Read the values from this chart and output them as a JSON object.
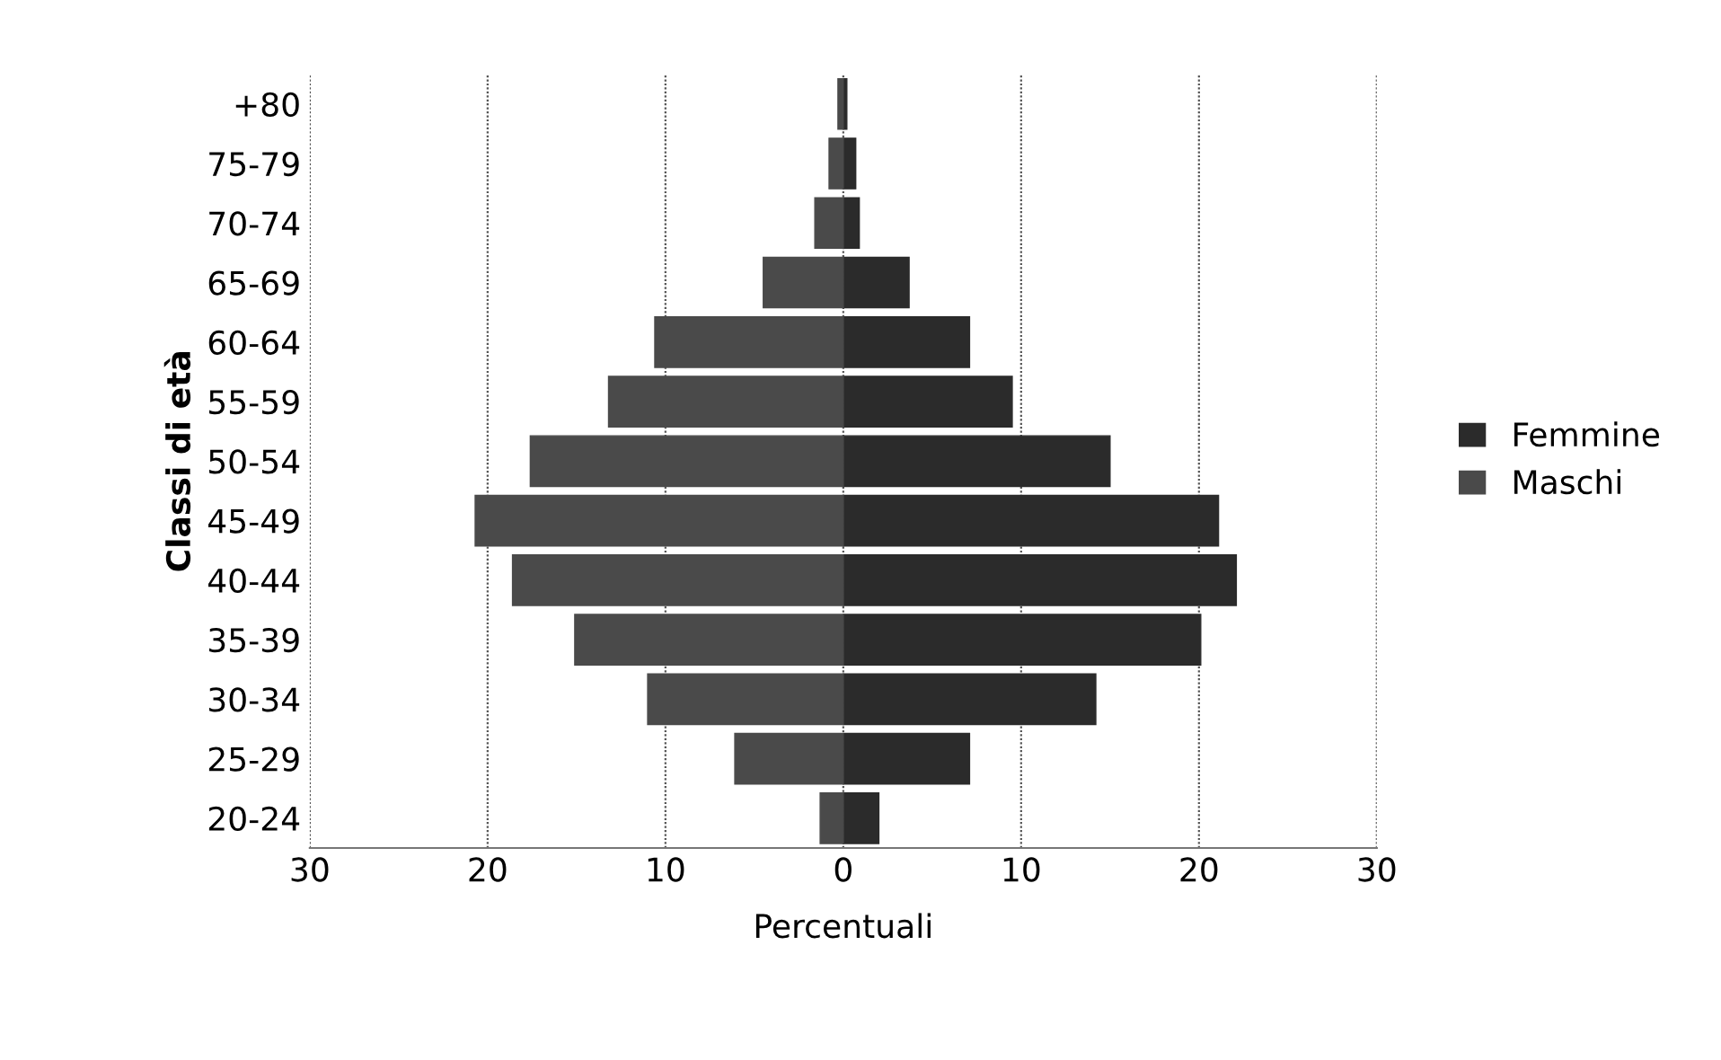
{
  "chart_data": {
    "type": "bar",
    "orientation": "horizontal",
    "xlabel": "Percentuali",
    "ylabel": "Classi di età",
    "categories": [
      "+80",
      "75-79",
      "70-74",
      "65-69",
      "60-64",
      "55-59",
      "50-54",
      "45-49",
      "40-44",
      "35-39",
      "30-34",
      "25-29",
      "20-24"
    ],
    "series": [
      {
        "name": "Femmine",
        "color": "#2b2b2b",
        "values": [
          0.2,
          0.7,
          0.9,
          3.7,
          7.1,
          9.5,
          15.0,
          21.1,
          22.1,
          20.1,
          14.2,
          7.1,
          2.0
        ]
      },
      {
        "name": "Maschi",
        "color": "#4a4a4a",
        "values": [
          -0.3,
          -0.8,
          -1.6,
          -4.5,
          -10.6,
          -13.2,
          -17.6,
          -20.7,
          -18.6,
          -15.1,
          -11.0,
          -6.1,
          -1.3
        ]
      }
    ],
    "xlim": [
      -30,
      30
    ],
    "xticks": [
      {
        "value": -30,
        "label": "30"
      },
      {
        "value": -20,
        "label": "20"
      },
      {
        "value": -10,
        "label": "10"
      },
      0,
      10,
      20,
      30
    ],
    "grid": "x",
    "legend": "right",
    "stacked": true
  }
}
